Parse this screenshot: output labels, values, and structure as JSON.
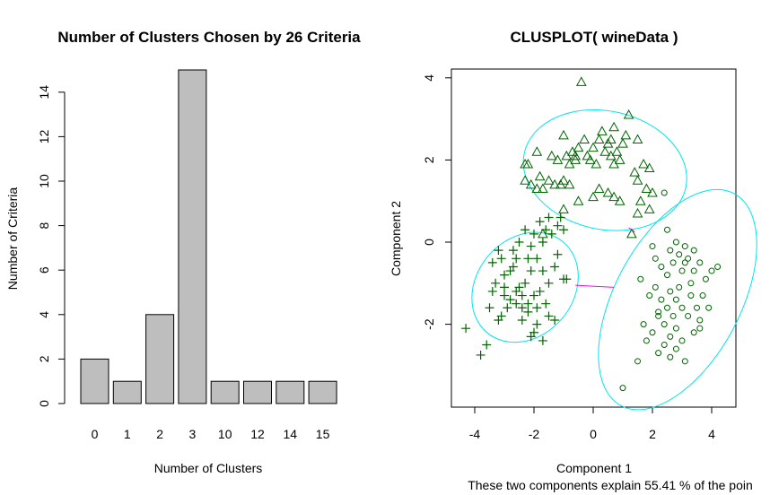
{
  "chart_data": [
    {
      "type": "bar",
      "title": "Number of Clusters Chosen by 26 Criteria",
      "xlabel": "Number of Clusters",
      "ylabel": "Number of Criteria",
      "categories": [
        "0",
        "1",
        "2",
        "3",
        "10",
        "12",
        "14",
        "15"
      ],
      "values": [
        2,
        1,
        4,
        15,
        1,
        1,
        1,
        1
      ],
      "ylim": [
        0,
        15
      ],
      "yticks": [
        0,
        2,
        4,
        6,
        8,
        10,
        12,
        14
      ],
      "bar_color": "#bebebe"
    },
    {
      "type": "scatter",
      "title": "CLUSPLOT( wineData )",
      "xlabel": "Component 1",
      "ylabel": "Component 2",
      "subtitle": "These two components explain 55.41 % of the poin",
      "xticks": [
        -4,
        -2,
        0,
        2,
        4
      ],
      "yticks": [
        -2,
        0,
        2,
        4
      ],
      "xlim": [
        -4.45,
        4.45
      ],
      "ylim": [
        -3.95,
        4.05
      ],
      "ellipse_color": "#00e5ee",
      "point_color": "#006400",
      "line_color": "#ff00ff",
      "clusters": [
        {
          "marker": "plus",
          "center": [
            -2.3,
            -1.1
          ],
          "semi_axes": [
            1.65,
            1.35
          ],
          "angle_deg": 50,
          "points": [
            [
              -4.3,
              -2.1
            ],
            [
              -3.6,
              -2.5
            ],
            [
              -3.8,
              -2.75
            ],
            [
              -3.2,
              -1.9
            ],
            [
              -3.0,
              -1.3
            ],
            [
              -3.4,
              -1.2
            ],
            [
              -3.5,
              -1.6
            ],
            [
              -3.3,
              -1.0
            ],
            [
              -3.4,
              -0.5
            ],
            [
              -3.2,
              -0.2
            ],
            [
              -3.0,
              -0.8
            ],
            [
              -2.8,
              -0.7
            ],
            [
              -2.6,
              -0.4
            ],
            [
              -2.5,
              -1.1
            ],
            [
              -2.6,
              -1.5
            ],
            [
              -2.4,
              -1.9
            ],
            [
              -2.2,
              -1.7
            ],
            [
              -2.3,
              -1.0
            ],
            [
              -2.0,
              -1.3
            ],
            [
              -1.9,
              -1.6
            ],
            [
              -1.8,
              -1.2
            ],
            [
              -2.1,
              -0.7
            ],
            [
              -1.9,
              -0.4
            ],
            [
              -1.7,
              -0.7
            ],
            [
              -1.5,
              -1.0
            ],
            [
              -1.3,
              -0.6
            ],
            [
              -1.2,
              -0.3
            ],
            [
              -1.0,
              -0.9
            ],
            [
              -0.9,
              -0.9
            ],
            [
              -2.7,
              -0.2
            ],
            [
              -2.5,
              0.0
            ],
            [
              -2.3,
              0.3
            ],
            [
              -2.0,
              0.2
            ],
            [
              -1.8,
              0.5
            ],
            [
              -1.6,
              0.3
            ],
            [
              -1.4,
              0.2
            ],
            [
              -1.2,
              0.4
            ],
            [
              -1.0,
              0.3
            ],
            [
              -1.5,
              0.6
            ],
            [
              -1.7,
              0.0
            ],
            [
              -2.1,
              -0.1
            ],
            [
              -2.2,
              -0.4
            ],
            [
              -2.6,
              -1.2
            ],
            [
              -2.8,
              -1.4
            ],
            [
              -2.9,
              -1.6
            ],
            [
              -3.1,
              -1.8
            ],
            [
              -2.4,
              -1.3
            ],
            [
              -2.0,
              -2.2
            ],
            [
              -2.1,
              -2.3
            ],
            [
              -1.6,
              -1.5
            ],
            [
              -1.5,
              -1.8
            ],
            [
              -1.9,
              -2.0
            ],
            [
              -1.7,
              -2.4
            ],
            [
              -2.2,
              -1.5
            ],
            [
              -2.4,
              -1.6
            ],
            [
              -2.7,
              -0.6
            ],
            [
              -3.0,
              -1.1
            ],
            [
              -3.1,
              -0.4
            ],
            [
              -1.3,
              -1.9
            ],
            [
              -1.1,
              0.6
            ]
          ]
        },
        {
          "marker": "triangle",
          "center": [
            0.4,
            1.75
          ],
          "semi_axes": [
            2.3,
            1.65
          ],
          "angle_deg": -12,
          "points": [
            [
              -0.4,
              3.9
            ],
            [
              -2.3,
              1.9
            ],
            [
              -2.2,
              1.9
            ],
            [
              -2.3,
              1.5
            ],
            [
              -2.1,
              1.4
            ],
            [
              -1.9,
              1.3
            ],
            [
              -1.7,
              1.3
            ],
            [
              -1.5,
              1.5
            ],
            [
              -1.3,
              1.4
            ],
            [
              -1.1,
              1.4
            ],
            [
              -1.0,
              1.5
            ],
            [
              -0.8,
              1.4
            ],
            [
              -1.8,
              1.6
            ],
            [
              -1.4,
              2.1
            ],
            [
              -1.2,
              2.0
            ],
            [
              -0.9,
              2.1
            ],
            [
              -0.7,
              2.2
            ],
            [
              -0.6,
              2.1
            ],
            [
              -0.5,
              2.3
            ],
            [
              -0.3,
              2.5
            ],
            [
              -0.2,
              2.1
            ],
            [
              0.0,
              2.3
            ],
            [
              0.2,
              2.5
            ],
            [
              0.3,
              2.7
            ],
            [
              0.5,
              2.4
            ],
            [
              0.6,
              2.1
            ],
            [
              0.7,
              1.9
            ],
            [
              0.8,
              2.2
            ],
            [
              0.9,
              2.0
            ],
            [
              1.0,
              2.4
            ],
            [
              0.6,
              2.5
            ],
            [
              0.7,
              2.8
            ],
            [
              1.2,
              3.1
            ],
            [
              1.1,
              2.6
            ],
            [
              1.4,
              1.7
            ],
            [
              1.5,
              1.5
            ],
            [
              1.7,
              1.9
            ],
            [
              1.9,
              1.8
            ],
            [
              1.8,
              1.3
            ],
            [
              2.0,
              1.2
            ],
            [
              1.6,
              1.0
            ],
            [
              1.3,
              0.2
            ],
            [
              1.5,
              0.7
            ],
            [
              1.9,
              0.8
            ],
            [
              -1.7,
              0.2
            ],
            [
              -1.0,
              0.8
            ],
            [
              -0.5,
              1.0
            ],
            [
              0.0,
              1.1
            ],
            [
              0.2,
              1.3
            ],
            [
              0.5,
              1.2
            ],
            [
              0.7,
              1.1
            ],
            [
              0.9,
              1.0
            ],
            [
              -0.8,
              1.9
            ],
            [
              -1.0,
              2.6
            ],
            [
              -0.6,
              2.0
            ],
            [
              -0.1,
              2.0
            ],
            [
              0.1,
              1.9
            ],
            [
              0.4,
              2.2
            ],
            [
              1.5,
              2.5
            ],
            [
              -1.9,
              2.2
            ]
          ]
        },
        {
          "marker": "circle",
          "center": [
            2.85,
            -1.4
          ],
          "semi_axes": [
            3.35,
            1.75
          ],
          "angle_deg": 62,
          "points": [
            [
              1.0,
              -3.55
            ],
            [
              2.4,
              1.2
            ],
            [
              2.5,
              0.3
            ],
            [
              2.8,
              0.0
            ],
            [
              3.1,
              -0.1
            ],
            [
              3.4,
              -0.2
            ],
            [
              3.6,
              -0.5
            ],
            [
              3.8,
              -0.9
            ],
            [
              4.0,
              -0.7
            ],
            [
              4.2,
              -0.6
            ],
            [
              2.1,
              -0.4
            ],
            [
              2.3,
              -0.6
            ],
            [
              2.5,
              -0.8
            ],
            [
              2.7,
              -0.5
            ],
            [
              2.9,
              -0.3
            ],
            [
              3.0,
              -0.7
            ],
            [
              3.2,
              -0.4
            ],
            [
              3.3,
              -1.0
            ],
            [
              2.6,
              -1.2
            ],
            [
              2.8,
              -1.4
            ],
            [
              3.0,
              -1.6
            ],
            [
              3.2,
              -1.8
            ],
            [
              3.5,
              -1.6
            ],
            [
              3.7,
              -1.3
            ],
            [
              2.2,
              -1.7
            ],
            [
              2.4,
              -2.0
            ],
            [
              2.6,
              -2.3
            ],
            [
              2.8,
              -2.1
            ],
            [
              3.0,
              -2.4
            ],
            [
              3.4,
              -2.2
            ],
            [
              3.6,
              -1.9
            ],
            [
              2.0,
              -2.2
            ],
            [
              1.8,
              -2.4
            ],
            [
              2.2,
              -2.7
            ],
            [
              2.4,
              -2.5
            ],
            [
              2.6,
              -2.8
            ],
            [
              3.1,
              -2.9
            ],
            [
              1.6,
              -0.9
            ],
            [
              1.9,
              -1.3
            ],
            [
              2.1,
              -1.1
            ],
            [
              2.3,
              -1.4
            ],
            [
              2.5,
              -1.6
            ],
            [
              2.7,
              -1.8
            ],
            [
              3.3,
              -1.3
            ],
            [
              3.6,
              -2.1
            ],
            [
              3.9,
              -1.6
            ],
            [
              1.7,
              -2.0
            ],
            [
              2.9,
              -1.1
            ],
            [
              3.1,
              -0.5
            ],
            [
              2.0,
              -0.1
            ],
            [
              2.6,
              -0.2
            ],
            [
              3.4,
              -0.7
            ],
            [
              2.2,
              -1.8
            ],
            [
              1.5,
              -2.9
            ],
            [
              2.8,
              -2.6
            ]
          ]
        }
      ],
      "links": [
        [
          [
            -0.6,
            -1.05
          ],
          [
            0.7,
            -1.1
          ]
        ],
        [
          [
            1.2,
            0.35
          ],
          [
            1.4,
            0.25
          ]
        ]
      ]
    }
  ]
}
